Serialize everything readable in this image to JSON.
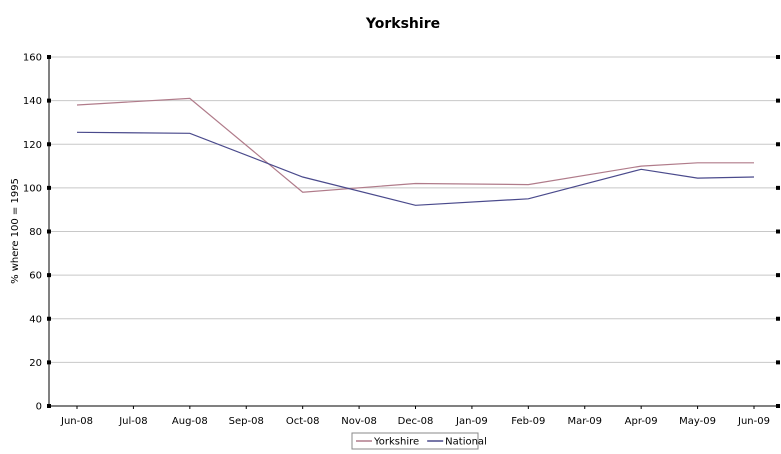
{
  "chart_data": {
    "type": "line",
    "title": "Yorkshire",
    "xlabel": "",
    "ylabel": "% where 100 = 1995",
    "categories": [
      "Jun-08",
      "Jul-08",
      "Aug-08",
      "Sep-08",
      "Oct-08",
      "Nov-08",
      "Dec-08",
      "Jan-09",
      "Feb-09",
      "Mar-09",
      "Apr-09",
      "May-09",
      "Jun-09"
    ],
    "ylim": [
      0,
      160
    ],
    "yticks": [
      "0",
      "20",
      "40",
      "60",
      "80",
      "100",
      "120",
      "140",
      "160"
    ],
    "grid": true,
    "legend_position": "bottom-center",
    "series": [
      {
        "name": "Yorkshire",
        "color": "#b07b8a",
        "values": [
          138.0,
          null,
          141.0,
          null,
          98.0,
          null,
          102.0,
          null,
          101.5,
          null,
          110.0,
          111.5,
          111.5
        ]
      },
      {
        "name": "National",
        "color": "#4a4a8c",
        "values": [
          125.5,
          null,
          125.0,
          null,
          105.0,
          null,
          92.0,
          null,
          95.0,
          null,
          108.5,
          104.5,
          105.0
        ]
      }
    ]
  }
}
